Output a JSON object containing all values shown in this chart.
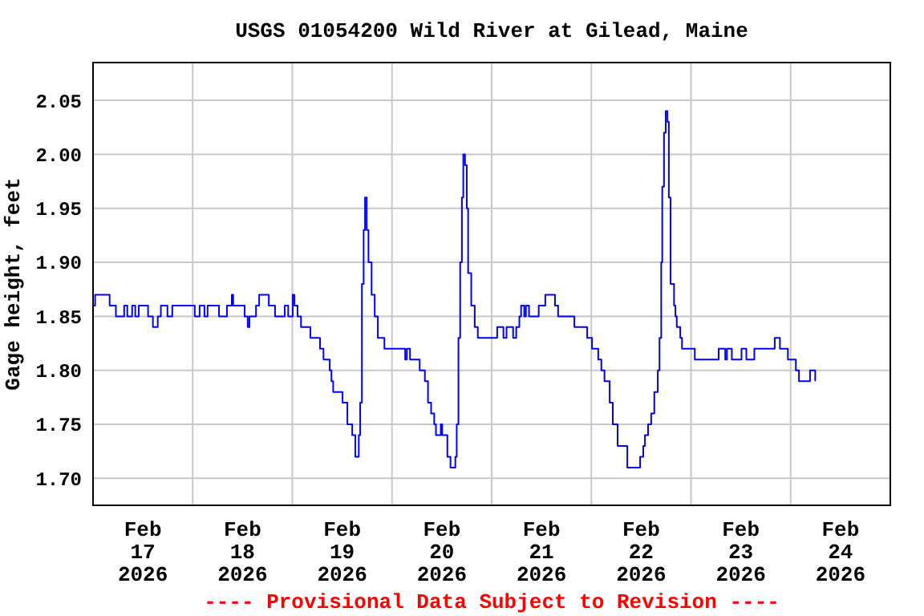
{
  "chart_data": {
    "type": "step",
    "title": "USGS 01054200 Wild River at Gilead, Maine",
    "ylabel": "Gage height, feet",
    "annotations": [
      "---- Provisional Data Subject to Revision ----"
    ],
    "xlim": [
      "2026-02-17T00:00",
      "2026-02-25T00:00"
    ],
    "xticks": [
      {
        "value": "2026-02-17T12:00",
        "label": "Feb\n17\n2026"
      },
      {
        "value": "2026-02-18T00:00",
        "label": null
      },
      {
        "value": "2026-02-18T12:00",
        "label": "Feb\n18\n2026"
      },
      {
        "value": "2026-02-19T00:00",
        "label": null
      },
      {
        "value": "2026-02-19T12:00",
        "label": "Feb\n19\n2026"
      },
      {
        "value": "2026-02-20T00:00",
        "label": null
      },
      {
        "value": "2026-02-20T12:00",
        "label": "Feb\n20\n2026"
      },
      {
        "value": "2026-02-21T00:00",
        "label": null
      },
      {
        "value": "2026-02-21T12:00",
        "label": "Feb\n21\n2026"
      },
      {
        "value": "2026-02-22T00:00",
        "label": null
      },
      {
        "value": "2026-02-22T12:00",
        "label": "Feb\n22\n2026"
      },
      {
        "value": "2026-02-23T00:00",
        "label": null
      },
      {
        "value": "2026-02-23T12:00",
        "label": "Feb\n23\n2026"
      },
      {
        "value": "2026-02-24T00:00",
        "label": null
      },
      {
        "value": "2026-02-24T12:00",
        "label": "Feb\n24\n2026"
      }
    ],
    "ylim": [
      1.675,
      2.085
    ],
    "yticks": [
      {
        "value": 1.7,
        "label": "1.70"
      },
      {
        "value": 1.75,
        "label": "1.75"
      },
      {
        "value": 1.8,
        "label": "1.80"
      },
      {
        "value": 1.85,
        "label": "1.85"
      },
      {
        "value": 1.9,
        "label": "1.90"
      },
      {
        "value": 1.95,
        "label": "1.95"
      },
      {
        "value": 2.0,
        "label": "2.00"
      },
      {
        "value": 2.05,
        "label": "2.05"
      }
    ],
    "grid": true,
    "marker": "none",
    "line_style": "solid",
    "series": [
      {
        "color": "#0000ff",
        "x": [
          "2026-02-17T00:00",
          "2026-02-17T00:30",
          "2026-02-17T04:00",
          "2026-02-17T05:30",
          "2026-02-17T07:30",
          "2026-02-17T08:15",
          "2026-02-17T09:25",
          "2026-02-17T10:10",
          "2026-02-17T11:00",
          "2026-02-17T13:15",
          "2026-02-17T14:25",
          "2026-02-17T15:35",
          "2026-02-17T16:20",
          "2026-02-17T17:55",
          "2026-02-17T19:05",
          "2026-02-18T00:30",
          "2026-02-18T01:40",
          "2026-02-18T02:50",
          "2026-02-18T03:35",
          "2026-02-18T06:20",
          "2026-02-18T08:15",
          "2026-02-18T09:25",
          "2026-02-18T09:45",
          "2026-02-18T12:30",
          "2026-02-18T13:15",
          "2026-02-18T13:40",
          "2026-02-18T15:15",
          "2026-02-18T16:00",
          "2026-02-18T18:20",
          "2026-02-18T19:50",
          "2026-02-18T22:10",
          "2026-02-18T23:00",
          "2026-02-19T00:05",
          "2026-02-19T00:30",
          "2026-02-19T01:15",
          "2026-02-19T02:05",
          "2026-02-19T04:20",
          "2026-02-19T06:40",
          "2026-02-19T07:30",
          "2026-02-19T09:00",
          "2026-02-19T09:25",
          "2026-02-19T09:50",
          "2026-02-19T12:05",
          "2026-02-19T13:15",
          "2026-02-19T14:25",
          "2026-02-19T15:10",
          "2026-02-19T16:00",
          "2026-02-19T16:20",
          "2026-02-19T16:45",
          "2026-02-19T17:10",
          "2026-02-19T17:30",
          "2026-02-19T17:55",
          "2026-02-19T18:20",
          "2026-02-19T19:05",
          "2026-02-19T19:50",
          "2026-02-19T20:35",
          "2026-02-19T22:10",
          "2026-02-20T03:10",
          "2026-02-20T03:35",
          "2026-02-20T04:20",
          "2026-02-20T06:40",
          "2026-02-20T07:55",
          "2026-02-20T08:40",
          "2026-02-20T09:25",
          "2026-02-20T10:10",
          "2026-02-20T10:35",
          "2026-02-20T11:45",
          "2026-02-20T12:05",
          "2026-02-20T13:20",
          "2026-02-20T14:05",
          "2026-02-20T15:15",
          "2026-02-20T15:35",
          "2026-02-20T16:00",
          "2026-02-20T16:25",
          "2026-02-20T16:50",
          "2026-02-20T17:10",
          "2026-02-20T17:35",
          "2026-02-20T18:00",
          "2026-02-20T18:20",
          "2026-02-20T19:05",
          "2026-02-20T19:55",
          "2026-02-20T20:40",
          "2026-02-21T01:20",
          "2026-02-21T02:50",
          "2026-02-21T03:35",
          "2026-02-21T05:10",
          "2026-02-21T05:55",
          "2026-02-21T06:40",
          "2026-02-21T07:05",
          "2026-02-21T07:50",
          "2026-02-21T08:15",
          "2026-02-21T09:00",
          "2026-02-21T11:20",
          "2026-02-21T12:55",
          "2026-02-21T15:15",
          "2026-02-21T16:00",
          "2026-02-21T19:55",
          "2026-02-21T23:00",
          "2026-02-22T00:10",
          "2026-02-22T01:40",
          "2026-02-22T02:25",
          "2026-02-22T03:10",
          "2026-02-22T04:25",
          "2026-02-22T05:10",
          "2026-02-22T06:20",
          "2026-02-22T08:40",
          "2026-02-22T11:45",
          "2026-02-22T12:30",
          "2026-02-22T12:55",
          "2026-02-22T13:40",
          "2026-02-22T14:25",
          "2026-02-22T15:10",
          "2026-02-22T16:00",
          "2026-02-22T16:25",
          "2026-02-22T16:50",
          "2026-02-22T17:05",
          "2026-02-22T17:30",
          "2026-02-22T17:55",
          "2026-02-22T18:20",
          "2026-02-22T18:40",
          "2026-02-22T19:05",
          "2026-02-22T19:55",
          "2026-02-22T20:15",
          "2026-02-22T20:35",
          "2026-02-22T21:25",
          "2026-02-22T21:50",
          "2026-02-23T00:55",
          "2026-02-23T06:40",
          "2026-02-23T08:15",
          "2026-02-23T08:40",
          "2026-02-23T09:50",
          "2026-02-23T12:10",
          "2026-02-23T13:20",
          "2026-02-23T15:15",
          "2026-02-23T20:10",
          "2026-02-23T21:25",
          "2026-02-23T23:20",
          "2026-02-24T01:15",
          "2026-02-24T02:00",
          "2026-02-24T04:40",
          "2026-02-24T05:55"
        ],
        "values": [
          1.86,
          1.87,
          1.86,
          1.85,
          1.86,
          1.85,
          1.86,
          1.85,
          1.86,
          1.85,
          1.84,
          1.85,
          1.86,
          1.85,
          1.86,
          1.85,
          1.86,
          1.85,
          1.86,
          1.85,
          1.86,
          1.87,
          1.86,
          1.85,
          1.84,
          1.85,
          1.86,
          1.87,
          1.86,
          1.85,
          1.86,
          1.85,
          1.87,
          1.86,
          1.85,
          1.84,
          1.83,
          1.82,
          1.81,
          1.8,
          1.79,
          1.78,
          1.77,
          1.75,
          1.74,
          1.72,
          1.74,
          1.77,
          1.88,
          1.93,
          1.96,
          1.93,
          1.9,
          1.87,
          1.85,
          1.83,
          1.82,
          1.81,
          1.82,
          1.81,
          1.8,
          1.79,
          1.77,
          1.76,
          1.75,
          1.74,
          1.75,
          1.74,
          1.72,
          1.71,
          1.72,
          1.75,
          1.83,
          1.9,
          1.96,
          2.0,
          1.99,
          1.95,
          1.89,
          1.86,
          1.84,
          1.83,
          1.84,
          1.83,
          1.84,
          1.83,
          1.84,
          1.85,
          1.86,
          1.85,
          1.86,
          1.85,
          1.86,
          1.87,
          1.86,
          1.85,
          1.84,
          1.83,
          1.82,
          1.81,
          1.8,
          1.79,
          1.77,
          1.75,
          1.73,
          1.71,
          1.72,
          1.73,
          1.74,
          1.75,
          1.76,
          1.78,
          1.8,
          1.83,
          1.9,
          1.97,
          2.02,
          2.04,
          2.03,
          1.96,
          1.88,
          1.86,
          1.85,
          1.84,
          1.83,
          1.82,
          1.81,
          1.82,
          1.81,
          1.82,
          1.81,
          1.82,
          1.81,
          1.82,
          1.83,
          1.82,
          1.81,
          1.8,
          1.79,
          1.8,
          1.79
        ]
      }
    ]
  }
}
